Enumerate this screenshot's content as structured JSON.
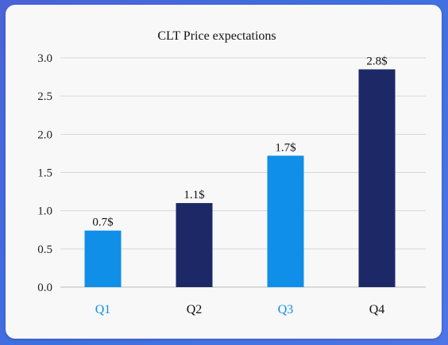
{
  "chart_data": {
    "type": "bar",
    "title": "CLT Price expectations",
    "xlabel": "",
    "ylabel": "",
    "categories": [
      "Q1",
      "Q2",
      "Q3",
      "Q4"
    ],
    "values": [
      0.74,
      1.1,
      1.72,
      2.85
    ],
    "data_labels": [
      "0.7$",
      "1.1$",
      "1.7$",
      "2.8$"
    ],
    "yticks": [
      "0.0",
      "0.5",
      "1.0",
      "1.5",
      "2.0",
      "2.5",
      "3.0"
    ],
    "ylim": [
      0,
      3.0
    ],
    "grid": true,
    "legend": "none",
    "colors": [
      "#0f8fe8",
      "#1c2966",
      "#0f8fe8",
      "#1c2966"
    ],
    "category_label_colors": [
      "#0f8fe8",
      "#111111",
      "#0f8fe8",
      "#111111"
    ]
  }
}
